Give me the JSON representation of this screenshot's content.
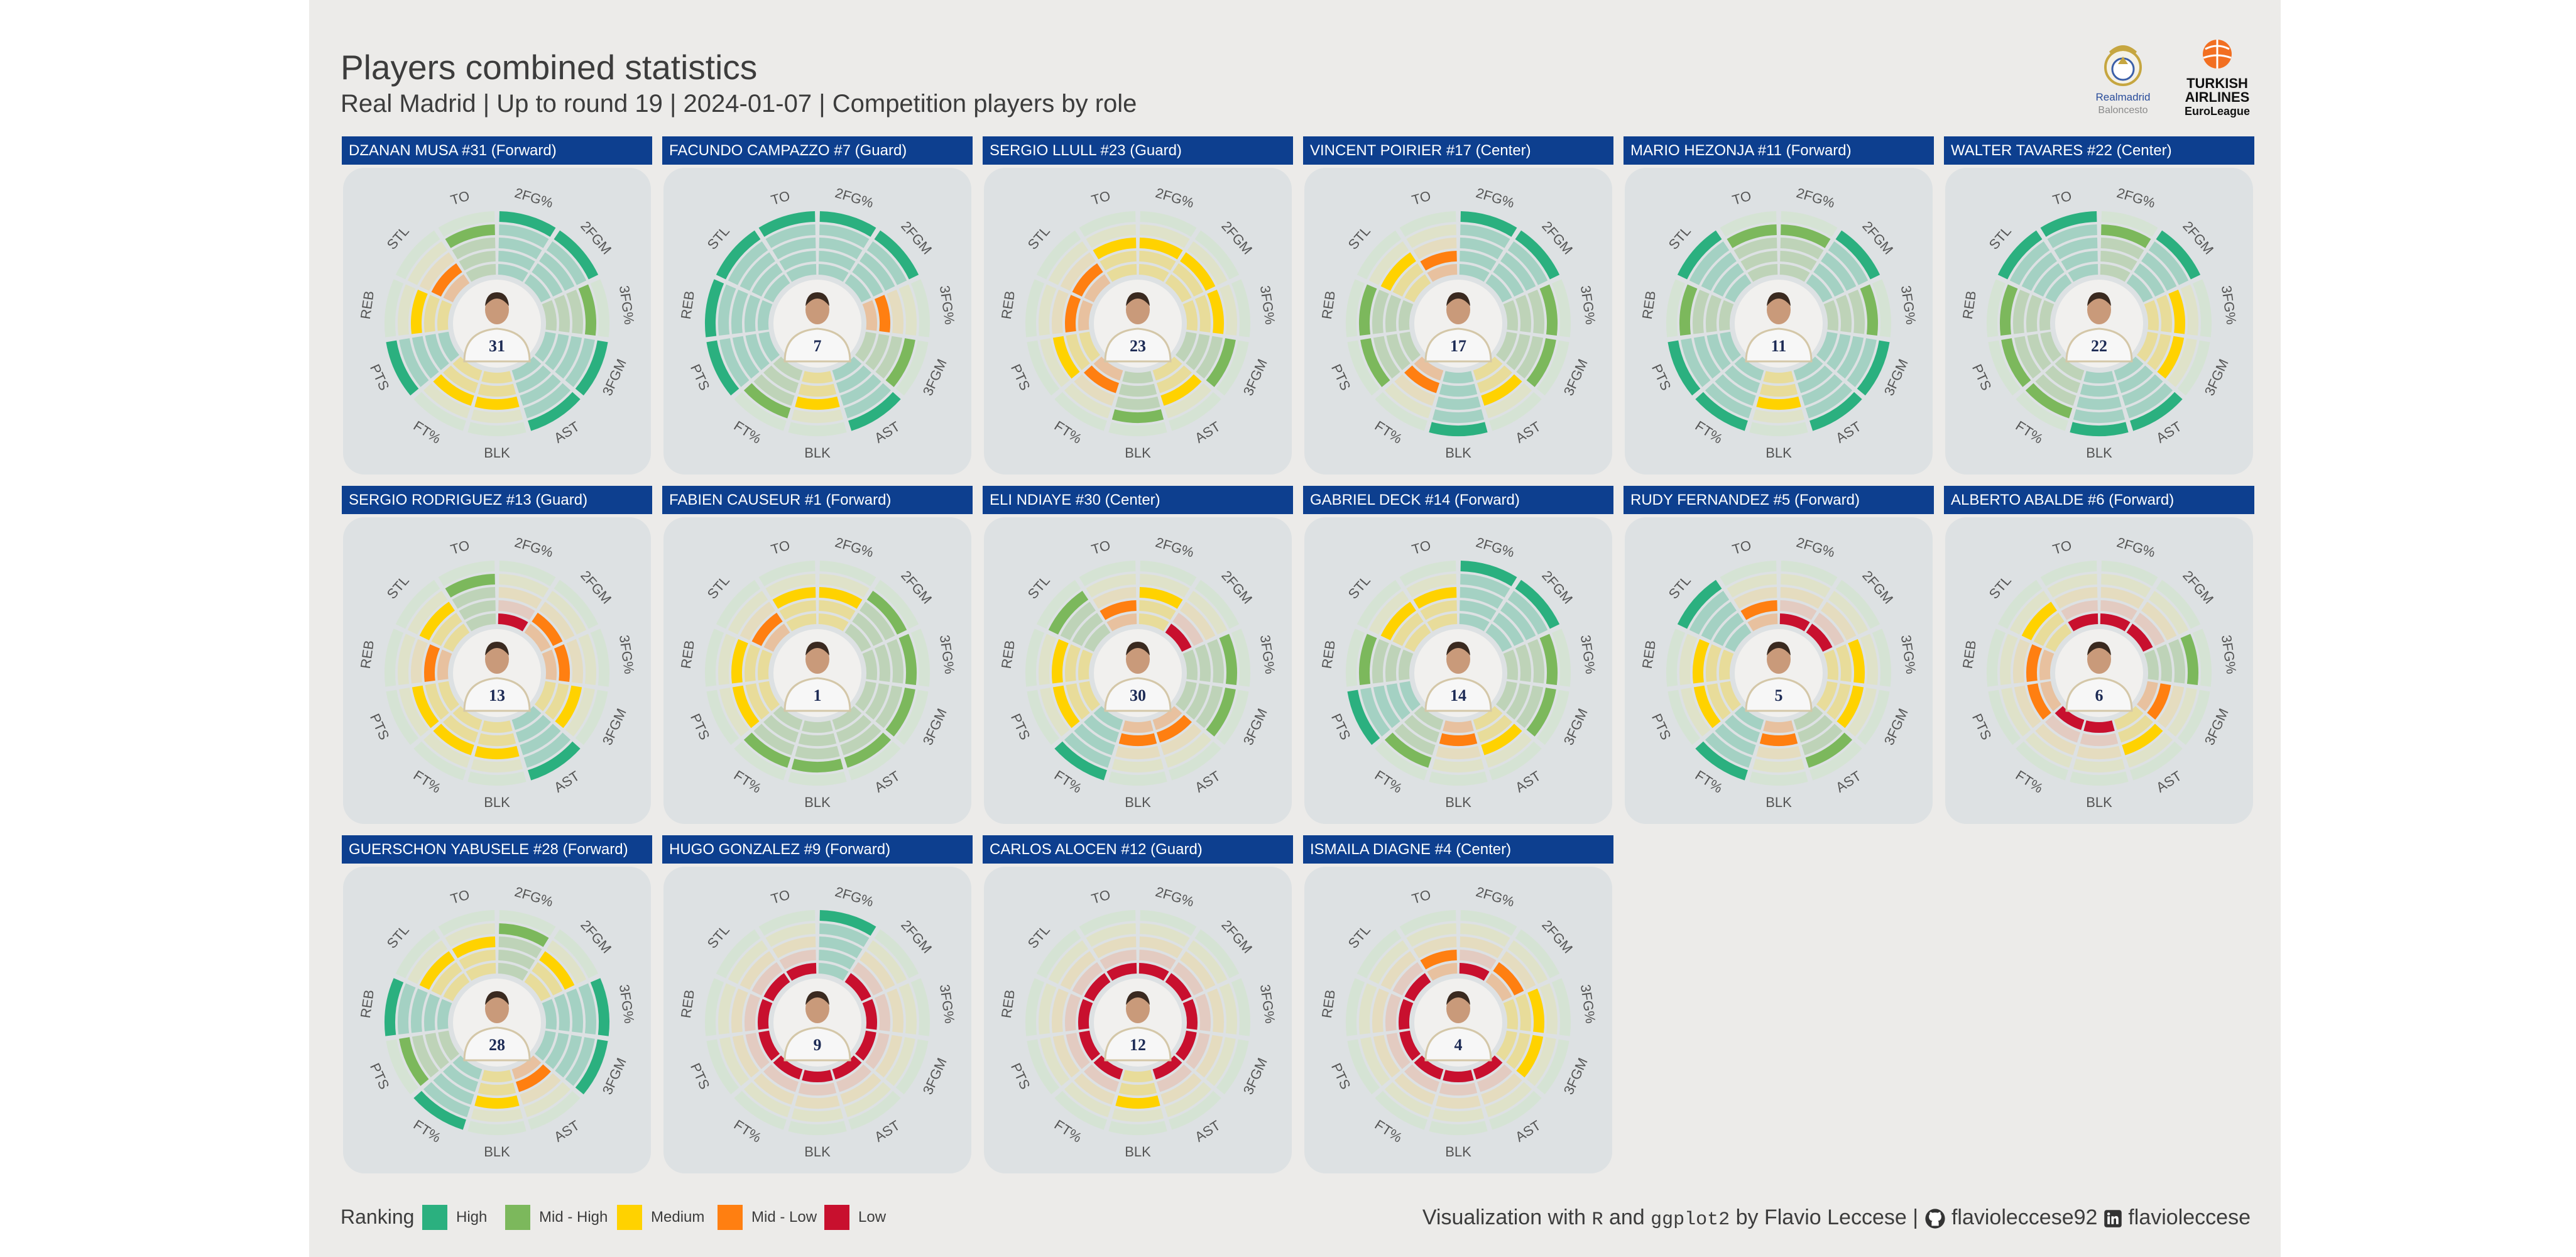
{
  "header": {
    "title": "Players combined statistics",
    "subtitle": "Real Madrid | Up to round 19 | 2024-01-07 | Competition players by role"
  },
  "logos": {
    "realmadrid_top": "Realmadrid",
    "realmadrid_bottom": "Baloncesto",
    "euroleague_line1": "TURKISH",
    "euroleague_line2": "AIRLINES",
    "euroleague_line3": "EuroLeague"
  },
  "colors": {
    "panel_bg": "#ecebe9",
    "card_bg": "#dde1e3",
    "header_bg": "#0d3f8f",
    "levels": [
      "#c8102e",
      "#ff7f11",
      "#ffd200",
      "#7cb85c",
      "#2bb07f"
    ],
    "empty_levels": [
      "#d9aeba",
      "#e3c9bc",
      "#e6dbba",
      "#dfe2c5",
      "#d4e3d2"
    ]
  },
  "legend": {
    "title": "Ranking",
    "items": [
      {
        "label": "High",
        "color": "#2bb07f"
      },
      {
        "label": "Mid - High",
        "color": "#7cb85c"
      },
      {
        "label": "Medium",
        "color": "#ffd200"
      },
      {
        "label": "Mid - Low",
        "color": "#ff7f11"
      },
      {
        "label": "Low",
        "color": "#c8102e"
      }
    ]
  },
  "credit": {
    "prefix": "Visualization with",
    "r": "R",
    "and": "and",
    "ggplot": "ggplot2",
    "by": "by Flavio Leccese |",
    "github": "flavioleccese92",
    "linkedin": "flavioleccese"
  },
  "chart_data": {
    "type": "radial-bar",
    "scale": "Ranking level 1 (Low) to 5 (High)",
    "level_names": [
      "Low",
      "Mid - Low",
      "Medium",
      "Mid - High",
      "High"
    ],
    "stats": [
      "2FG%",
      "2FGM",
      "3FG%",
      "3FGM",
      "AST",
      "BLK",
      "FT%",
      "PTS",
      "REB",
      "STL",
      "TO"
    ],
    "players": [
      {
        "name": "DZANAN MUSA",
        "number": "31",
        "role": "Forward",
        "header": "DZANAN MUSA #31 (Forward)",
        "values": [
          5,
          5,
          4,
          5,
          5,
          3,
          3,
          5,
          3,
          2,
          4
        ]
      },
      {
        "name": "FACUNDO CAMPAZZO",
        "number": "7",
        "role": "Guard",
        "header": "FACUNDO CAMPAZZO #7 (Guard)",
        "values": [
          5,
          5,
          2,
          4,
          5,
          3,
          4,
          5,
          5,
          5,
          5
        ]
      },
      {
        "name": "SERGIO LLULL",
        "number": "23",
        "role": "Guard",
        "header": "SERGIO LLULL #23 (Guard)",
        "values": [
          3,
          3,
          3,
          4,
          3,
          4,
          2,
          3,
          2,
          2,
          3
        ]
      },
      {
        "name": "VINCENT POIRIER",
        "number": "17",
        "role": "Center",
        "header": "VINCENT POIRIER #17 (Center)",
        "values": [
          5,
          5,
          4,
          4,
          3,
          5,
          2,
          4,
          4,
          3,
          2
        ]
      },
      {
        "name": "MARIO HEZONJA",
        "number": "11",
        "role": "Forward",
        "header": "MARIO HEZONJA #11 (Forward)",
        "values": [
          4,
          5,
          4,
          5,
          5,
          3,
          5,
          5,
          4,
          5,
          4
        ]
      },
      {
        "name": "WALTER TAVARES",
        "number": "22",
        "role": "Center",
        "header": "WALTER TAVARES #22 (Center)",
        "values": [
          4,
          5,
          3,
          3,
          5,
          5,
          4,
          4,
          4,
          5,
          5
        ]
      },
      {
        "name": "SERGIO RODRIGUEZ",
        "number": "13",
        "role": "Guard",
        "header": "SERGIO RODRIGUEZ #13 (Guard)",
        "values": [
          1,
          2,
          2,
          3,
          5,
          3,
          3,
          3,
          2,
          3,
          4
        ]
      },
      {
        "name": "FABIEN CAUSEUR",
        "number": "1",
        "role": "Forward",
        "header": "FABIEN CAUSEUR #1 (Forward)",
        "values": [
          3,
          4,
          4,
          4,
          4,
          4,
          4,
          3,
          3,
          2,
          3
        ]
      },
      {
        "name": "ELI NDIAYE",
        "number": "30",
        "role": "Center",
        "header": "ELI NDIAYE #30 (Center)",
        "values": [
          3,
          1,
          4,
          4,
          2,
          2,
          5,
          3,
          3,
          4,
          2
        ]
      },
      {
        "name": "GABRIEL DECK",
        "number": "14",
        "role": "Forward",
        "header": "GABRIEL DECK #14 (Forward)",
        "values": [
          5,
          5,
          4,
          4,
          3,
          2,
          4,
          5,
          4,
          3,
          3
        ]
      },
      {
        "name": "RUDY FERNANDEZ",
        "number": "5",
        "role": "Forward",
        "header": "RUDY FERNANDEZ #5 (Forward)",
        "values": [
          1,
          1,
          3,
          3,
          4,
          2,
          5,
          3,
          3,
          5,
          2
        ]
      },
      {
        "name": "ALBERTO ABALDE",
        "number": "6",
        "role": "Forward",
        "header": "ALBERTO ABALDE #6 (Forward)",
        "values": [
          1,
          1,
          4,
          2,
          3,
          1,
          1,
          2,
          2,
          3,
          1
        ]
      },
      {
        "name": "GUERSCHON YABUSELE",
        "number": "28",
        "role": "Forward",
        "header": "GUERSCHON YABUSELE #28 (Forward)",
        "values": [
          4,
          3,
          5,
          5,
          2,
          3,
          5,
          4,
          5,
          3,
          3
        ]
      },
      {
        "name": "HUGO GONZALEZ",
        "number": "9",
        "role": "Forward",
        "header": "HUGO GONZALEZ #9 (Forward)",
        "values": [
          5,
          1,
          1,
          1,
          1,
          1,
          1,
          1,
          1,
          1,
          1
        ]
      },
      {
        "name": "CARLOS ALOCEN",
        "number": "12",
        "role": "Guard",
        "header": "CARLOS ALOCEN #12 (Guard)",
        "values": [
          1,
          1,
          1,
          1,
          1,
          3,
          1,
          1,
          1,
          1,
          1
        ]
      },
      {
        "name": "ISMAILA DIAGNE",
        "number": "4",
        "role": "Center",
        "header": "ISMAILA DIAGNE #4 (Center)",
        "values": [
          1,
          2,
          3,
          3,
          1,
          1,
          1,
          1,
          1,
          1,
          2
        ]
      }
    ]
  }
}
